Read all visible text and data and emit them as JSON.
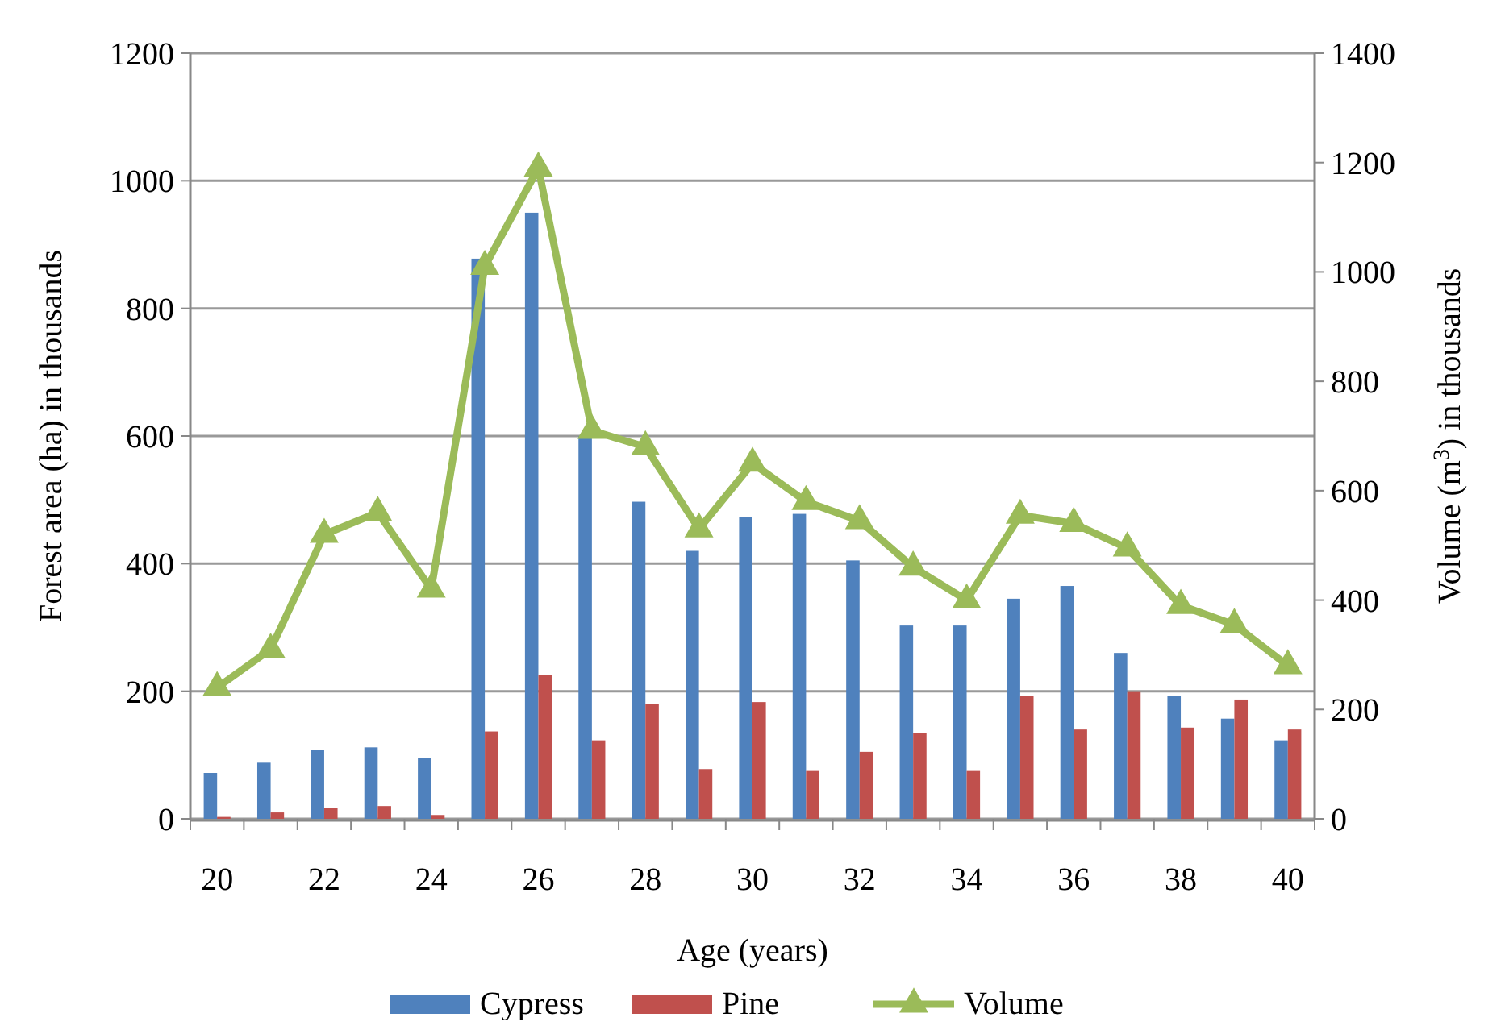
{
  "chart_data": {
    "type": "bar",
    "xlabel": "Age (years)",
    "ylabel": "Forest area (ha) in thousands",
    "y2label": "Volume (m$^{3}$) in thousands",
    "categories": [
      "20",
      null,
      "22",
      null,
      "24",
      null,
      "26",
      null,
      "28",
      null,
      "30",
      null,
      "32",
      null,
      "34",
      null,
      "36",
      null,
      "38",
      null,
      "40"
    ],
    "series": [
      {
        "name": "Cypress",
        "color": "#4f81bd",
        "values": [
          72,
          88,
          108,
          112,
          95,
          878,
          950,
          600,
          497,
          420,
          473,
          478,
          405,
          303,
          303,
          345,
          365,
          260,
          192,
          157,
          123
        ]
      },
      {
        "name": "Pine",
        "color": "#c0504d",
        "values": [
          3,
          10,
          17,
          20,
          6,
          137,
          225,
          123,
          180,
          78,
          183,
          75,
          105,
          135,
          75,
          193,
          140,
          200,
          143,
          187,
          140
        ]
      },
      {
        "name": "Volume",
        "type": "line",
        "axis": "y2",
        "color": "#9bbb59",
        "marker": "triangle",
        "values": [
          240,
          310,
          520,
          560,
          420,
          1010,
          1190,
          710,
          680,
          530,
          650,
          580,
          545,
          460,
          400,
          555,
          540,
          495,
          390,
          355,
          280
        ]
      }
    ],
    "ylim": [
      0,
      1200
    ],
    "yticks": [
      0,
      200,
      400,
      600,
      800,
      1000,
      1200
    ],
    "y2lim": [
      0,
      1400
    ],
    "y2ticks": [
      0,
      200,
      400,
      600,
      800,
      1000,
      1200,
      1400
    ],
    "grid": "y",
    "legend": "bottom"
  }
}
